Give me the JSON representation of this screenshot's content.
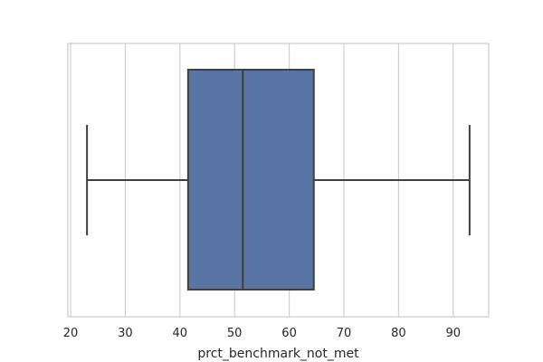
{
  "chart_data": {
    "type": "boxplot",
    "orientation": "horizontal",
    "xlabel": "prct_benchmark_not_met",
    "xlim": [
      19.5,
      96.5
    ],
    "x_ticks": [
      20,
      30,
      40,
      50,
      60,
      70,
      80,
      90
    ],
    "grid": "vertical",
    "box": {
      "min": 23,
      "q1": 41.5,
      "median": 51.5,
      "q3": 64.5,
      "max": 93
    },
    "colors": {
      "box_fill": "#5875a4",
      "line": "#3f3f3f",
      "grid": "#cccccc",
      "frame": "#cccccc"
    }
  }
}
